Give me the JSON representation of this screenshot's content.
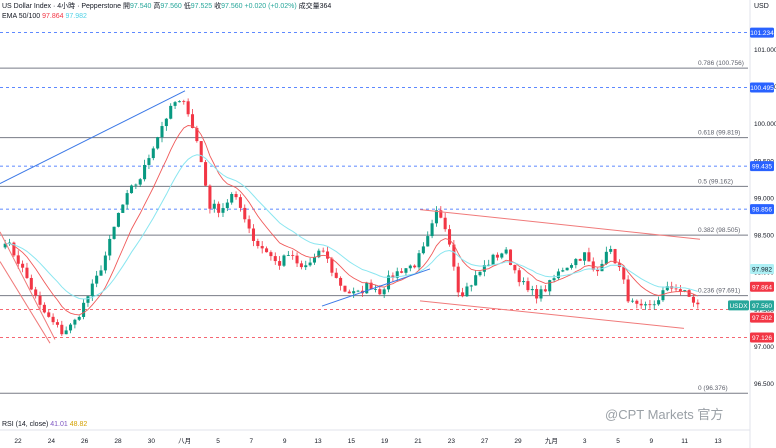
{
  "header": {
    "title": "US Dollar Index · 4小時 · Pepperstone",
    "o_label": "開",
    "o_val": "97.540",
    "h_label": "高",
    "h_val": "97.560",
    "l_label": "低",
    "l_val": "97.525",
    "c_label": "收",
    "c_val": "97.560",
    "change": "+0.020 (+0.02%)",
    "vol_label": "成交量",
    "vol_val": "364",
    "ema_label": "EMA 50/100",
    "ema50": "97.864",
    "ema100": "97.982",
    "rsi_label": "RSI (14, close)",
    "rsi_a": "41.01",
    "rsi_b": "48.82"
  },
  "currency": "USD",
  "watermark": "@CPT Markets 官方",
  "colors": {
    "up": "#089981",
    "down": "#f23645",
    "ema50": "#f05a5a",
    "ema100": "#8ae6f0",
    "trend_blue": "#3b78e7",
    "channel_red": "#f07a7a",
    "fib_line": "#787b86",
    "dashed_blue": "#2962ff",
    "dashed_red": "#f23645"
  },
  "chart_data": {
    "type": "candlestick",
    "symbol": "USDX",
    "y_ticks": [
      96.5,
      97.0,
      97.5,
      98.0,
      98.5,
      99.0,
      99.5,
      100.0,
      100.5,
      101.0
    ],
    "y_tick_labels": [
      "96.500",
      "97.000",
      "97.500",
      "98.000",
      "98.500",
      "99.000",
      "99.500",
      "100.000",
      "100.500",
      "101.000"
    ],
    "x_tick_labels": [
      "22",
      "24",
      "26",
      "28",
      "30",
      "八月",
      "5",
      "7",
      "9",
      "13",
      "15",
      "19",
      "21",
      "23",
      "27",
      "29",
      "九月",
      "3",
      "5",
      "9",
      "11",
      "13"
    ],
    "fib_levels": [
      {
        "label": "0.786 (100.756)",
        "value": 100.756
      },
      {
        "label": "0.618 (99.819)",
        "value": 99.819
      },
      {
        "label": "0.5 (99.162)",
        "value": 99.162
      },
      {
        "label": "0.382 (98.505)",
        "value": 98.505
      },
      {
        "label": "0.236 (97.691)",
        "value": 97.691
      },
      {
        "label": "0 (96.376)",
        "value": 96.376
      }
    ],
    "levels": [
      {
        "label": "101.234",
        "value": 101.234,
        "style": "dashed-blue"
      },
      {
        "label": "100.495",
        "value": 100.495,
        "style": "dashed-blue"
      },
      {
        "label": "99.435",
        "value": 99.435,
        "style": "dashed-blue"
      },
      {
        "label": "98.856",
        "value": 98.856,
        "style": "dashed-blue"
      },
      {
        "label": "97.126",
        "value": 97.126,
        "style": "dashed-red"
      }
    ],
    "price_tags": [
      {
        "label": "97.982",
        "value": 97.982,
        "kind": "ema100"
      },
      {
        "label": "97.864",
        "value": 97.864,
        "kind": "ema50"
      },
      {
        "label": "USDX",
        "value": 97.56,
        "kind": "symbol"
      },
      {
        "label": "97.560",
        "value": 97.56,
        "kind": "last"
      },
      {
        "label": "97.502",
        "value": 97.502,
        "kind": "red"
      },
      {
        "label": "97.126",
        "value": 97.126,
        "kind": "red"
      },
      {
        "label": "101.234",
        "value": 101.234,
        "kind": "blue"
      },
      {
        "label": "100.495",
        "value": 100.495,
        "kind": "blue"
      },
      {
        "label": "99.435",
        "value": 99.435,
        "kind": "blue"
      },
      {
        "label": "98.856",
        "value": 98.856,
        "kind": "blue"
      }
    ],
    "price_path": [
      98.45,
      98.2,
      97.9,
      97.55,
      97.35,
      97.2,
      97.3,
      97.6,
      97.9,
      98.3,
      98.8,
      99.1,
      99.3,
      99.7,
      100.05,
      100.3,
      100.25,
      99.7,
      98.9,
      98.85,
      99.05,
      98.8,
      98.4,
      98.3,
      98.1,
      98.25,
      98.05,
      98.15,
      98.3,
      97.95,
      97.75,
      97.7,
      97.85,
      97.75,
      97.95,
      98.05,
      98.1,
      98.35,
      98.8,
      98.55,
      97.7,
      97.85,
      98.05,
      98.2,
      98.3,
      98.0,
      97.75,
      97.7,
      97.85,
      98.05,
      98.15,
      98.25,
      97.95,
      98.35,
      98.1,
      97.6,
      97.5,
      97.55,
      97.75,
      97.82,
      97.7,
      97.56
    ],
    "price_range_estimate": {
      "high": 100.3,
      "low": 97.15
    },
    "ylim": [
      96.35,
      101.5
    ],
    "annotations": [
      "ascending trendline",
      "descending channel",
      "ascending support",
      "red falling lines"
    ]
  }
}
